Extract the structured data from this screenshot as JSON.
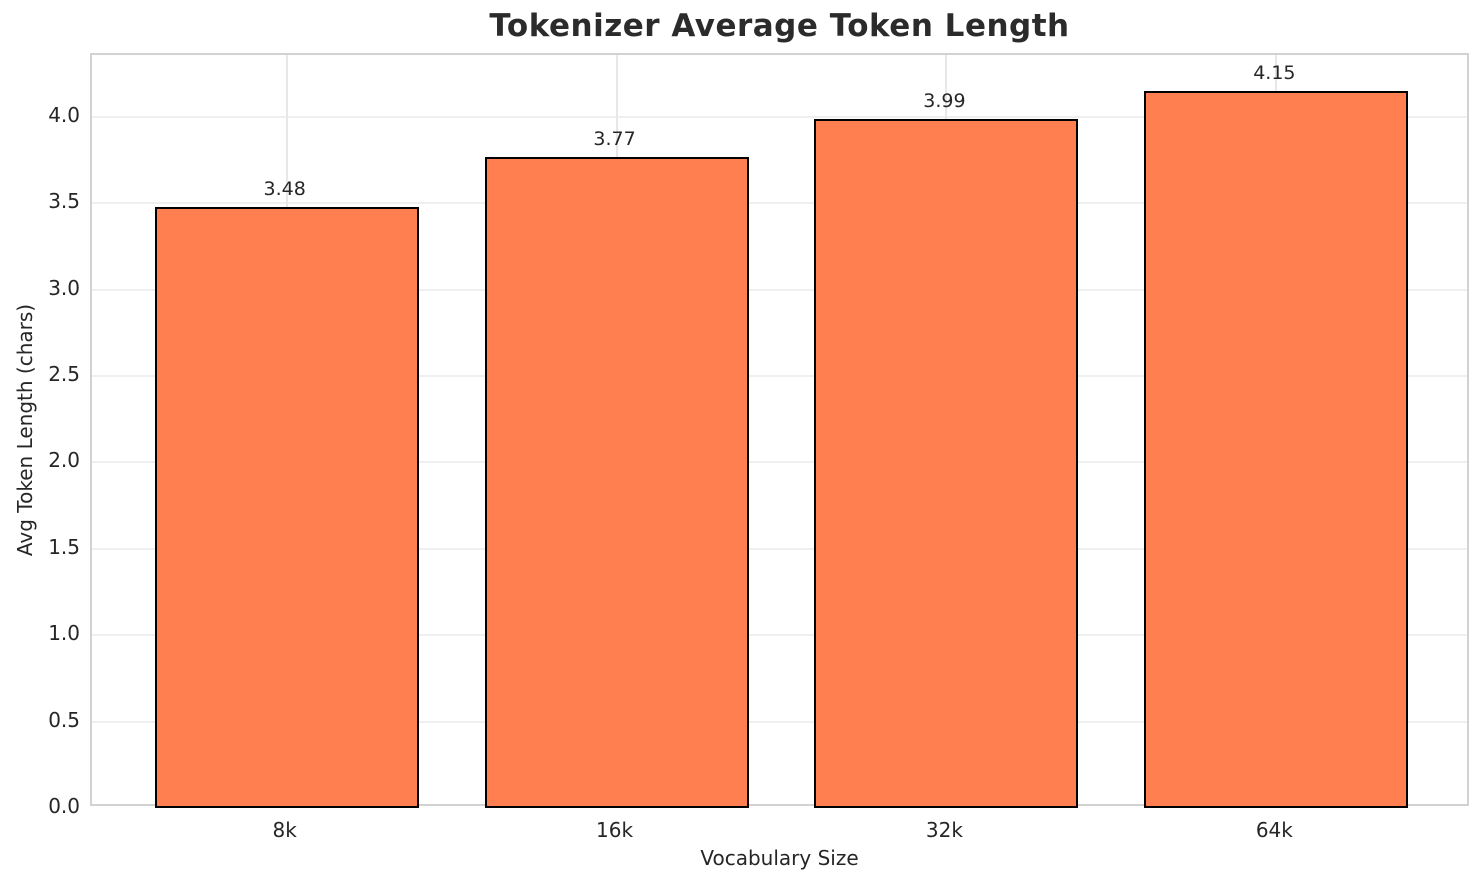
{
  "chart_data": {
    "type": "bar",
    "title": "Tokenizer Average Token Length",
    "xlabel": "Vocabulary Size",
    "ylabel": "Avg Token Length (chars)",
    "categories": [
      "8k",
      "16k",
      "32k",
      "64k"
    ],
    "values": [
      3.48,
      3.77,
      3.99,
      4.15
    ],
    "bar_labels": [
      "3.48",
      "3.77",
      "3.99",
      "4.15"
    ],
    "yticks": [
      0.0,
      0.5,
      1.0,
      1.5,
      2.0,
      2.5,
      3.0,
      3.5,
      4.0
    ],
    "ytick_labels": [
      "0.0",
      "0.5",
      "1.0",
      "1.5",
      "2.0",
      "2.5",
      "3.0",
      "3.5",
      "4.0"
    ],
    "ylim": [
      0,
      4.3575
    ],
    "xlim": [
      -0.59,
      3.59
    ],
    "bar_width": 0.8,
    "grid": true,
    "legend": "none",
    "colors": {
      "bar_fill": "#ff7f50",
      "bar_edge": "#000000",
      "gridline": "#efefef",
      "spine": "#d2d2d2",
      "text": "#262626",
      "background": "#ffffff"
    }
  }
}
